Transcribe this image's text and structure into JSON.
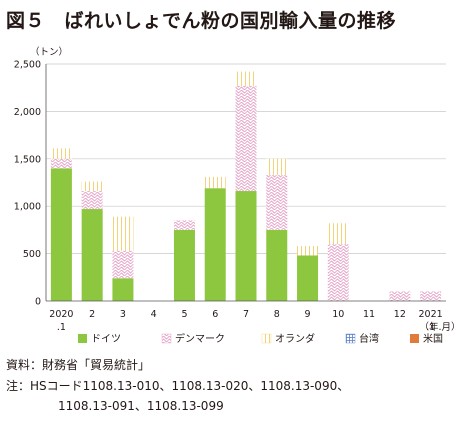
{
  "title": "図５　ばれいしょでん粉の国別輸入量の推移",
  "chart_data": {
    "type": "bar",
    "stacked": true,
    "ylabel": "（トン）",
    "xlabel": "（年.月）",
    "ylim": [
      0,
      2500
    ],
    "yticks": [
      0,
      500,
      1000,
      1500,
      2000,
      2500
    ],
    "ytick_labels": [
      "0",
      "500",
      "1,000",
      "1,500",
      "2,000",
      "2,500"
    ],
    "categories": [
      "2020.1",
      "2",
      "3",
      "4",
      "5",
      "6",
      "7",
      "8",
      "9",
      "10",
      "11",
      "12",
      "2021.1"
    ],
    "category_labels": [
      [
        "2020",
        ".1"
      ],
      [
        "2"
      ],
      [
        "3"
      ],
      [
        "4"
      ],
      [
        "5"
      ],
      [
        "6"
      ],
      [
        "7"
      ],
      [
        "8"
      ],
      [
        "9"
      ],
      [
        "10"
      ],
      [
        "11"
      ],
      [
        "12"
      ],
      [
        "2021",
        ".1"
      ]
    ],
    "grid": true,
    "legend_position": "bottom",
    "series": [
      {
        "name": "ドイツ",
        "color": "#8dc63f",
        "pattern": "solid",
        "values": [
          1400,
          970,
          240,
          0,
          750,
          1190,
          1160,
          750,
          480,
          0,
          0,
          0,
          0
        ]
      },
      {
        "name": "デンマーク",
        "color": "#e8a0c8",
        "pattern": "wave",
        "values": [
          100,
          190,
          290,
          0,
          100,
          0,
          1110,
          580,
          0,
          600,
          0,
          100,
          100
        ]
      },
      {
        "name": "オランダ",
        "color": "#f3d27a",
        "pattern": "vlines",
        "values": [
          110,
          100,
          360,
          0,
          0,
          120,
          150,
          170,
          100,
          220,
          0,
          0,
          0
        ]
      },
      {
        "name": "台湾",
        "color": "#5b7fc7",
        "pattern": "grid",
        "values": [
          0,
          0,
          0,
          0,
          0,
          0,
          0,
          0,
          0,
          0,
          0,
          0,
          0
        ]
      },
      {
        "name": "米国",
        "color": "#e07b39",
        "pattern": "solid",
        "values": [
          0,
          0,
          0,
          0,
          0,
          0,
          0,
          0,
          0,
          0,
          0,
          0,
          0
        ]
      }
    ]
  },
  "notes": {
    "source": "資料：財務省「貿易統計」",
    "note_line1": "注：HSコード1108.13-010、1108.13-020、1108.13-090、",
    "note_line2": "1108.13-091、1108.13-099"
  }
}
